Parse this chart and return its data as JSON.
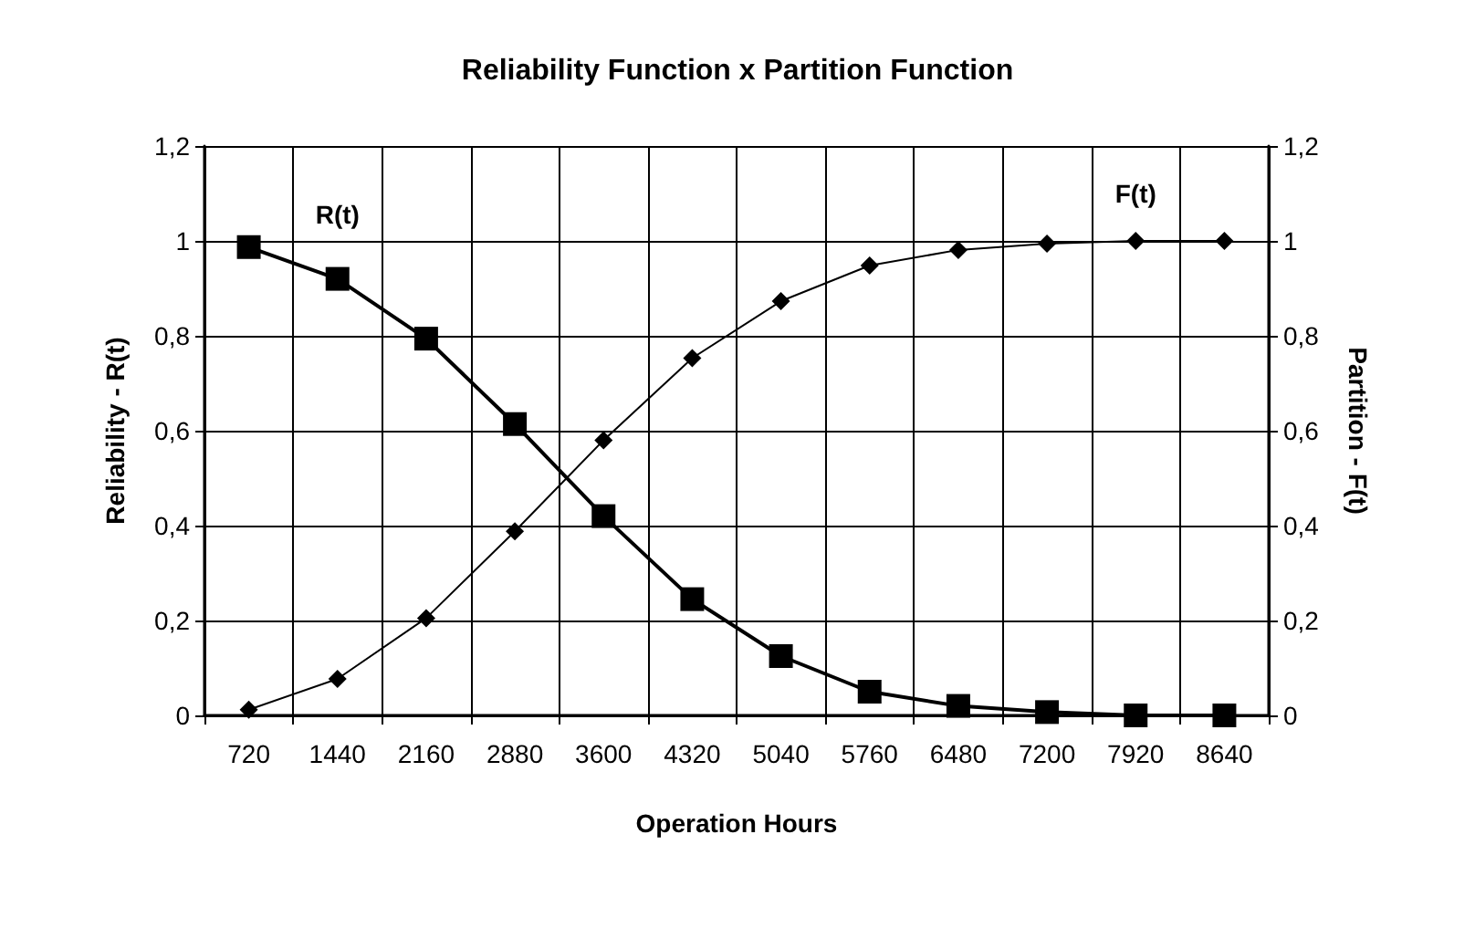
{
  "chart_data": {
    "type": "line",
    "title": "Reliability Function x Partition Function",
    "xlabel": "Operation Hours",
    "ylabel": "Reliability - R(t)",
    "y2label": "Partition - F(t)",
    "categories": [
      "720",
      "1440",
      "2160",
      "2880",
      "3600",
      "4320",
      "5040",
      "5760",
      "6480",
      "7200",
      "7920",
      "8640"
    ],
    "series": [
      {
        "name": "R(t)",
        "color": "#000000",
        "marker": "square",
        "values": [
          0.987,
          0.92,
          0.794,
          0.614,
          0.42,
          0.245,
          0.125,
          0.05,
          0.02,
          0.007,
          0,
          0
        ]
      },
      {
        "name": "F(t)",
        "color": "#000000",
        "marker": "diamond",
        "axis": "y2",
        "values": [
          0.012,
          0.077,
          0.205,
          0.388,
          0.58,
          0.753,
          0.873,
          0.948,
          0.981,
          0.994,
          1,
          1
        ]
      }
    ],
    "ylim": [
      0,
      1.2
    ],
    "yticks": [
      0,
      {
        "value": 0.2,
        "label": "0,2"
      },
      {
        "value": 0.4,
        "label": "0,4"
      },
      {
        "value": 0.6,
        "label": "0,6"
      },
      {
        "value": 0.8,
        "label": "0,8"
      },
      1,
      {
        "value": 1.2,
        "label": "1,2"
      }
    ],
    "y2lim": [
      0,
      1.2
    ],
    "y2ticks": [
      0,
      {
        "value": 0.2,
        "label": "0,2"
      },
      {
        "value": 0.4,
        "label": "0,4"
      },
      {
        "value": 0.6,
        "label": "0,6"
      },
      {
        "value": 0.8,
        "label": "0,8"
      },
      1,
      {
        "value": 1.2,
        "label": "1,2"
      }
    ],
    "grid": true,
    "line_style": "solid"
  }
}
